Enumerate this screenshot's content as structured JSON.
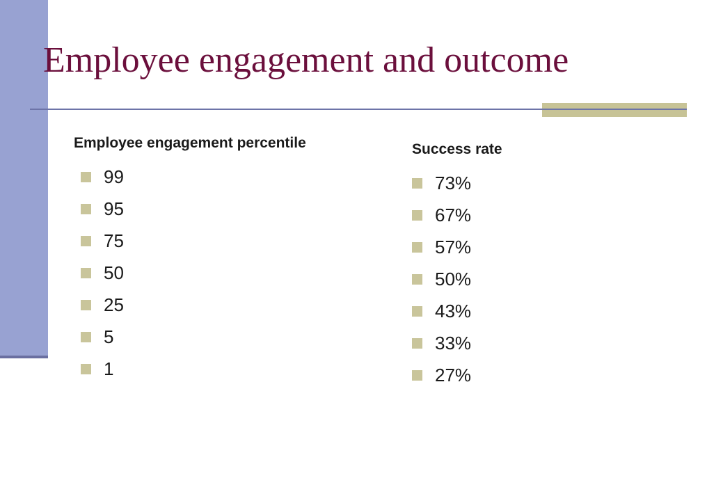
{
  "slide": {
    "title": "Employee engagement and outcome"
  },
  "columns": {
    "left": {
      "heading": "Employee engagement percentile",
      "items": [
        "99",
        "95",
        "75",
        "50",
        "25",
        "5",
        "1"
      ]
    },
    "right": {
      "heading": "Success rate",
      "items": [
        "73%",
        "67%",
        "57%",
        "50%",
        "43%",
        "33%",
        "27%"
      ]
    }
  },
  "colors": {
    "title": "#6b0f3c",
    "left_bar": "#98a2d2",
    "rule_line": "#6d74a8",
    "accent": "#c7c396",
    "bullet": "#c9c59b"
  },
  "icons": {
    "bullet": "square-bullet-icon"
  }
}
